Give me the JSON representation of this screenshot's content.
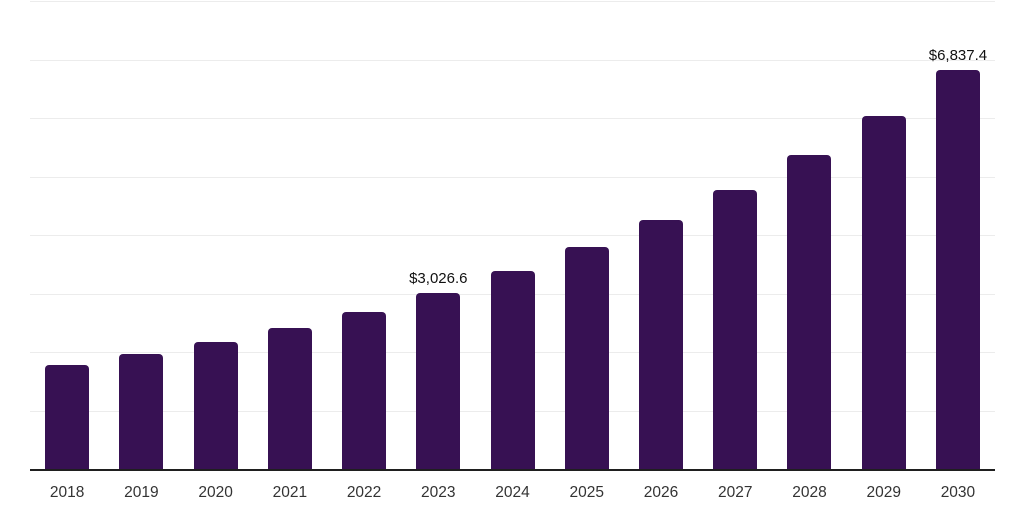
{
  "chart_data": {
    "type": "bar",
    "title": "",
    "xlabel": "",
    "ylabel": "",
    "categories": [
      "2018",
      "2019",
      "2020",
      "2021",
      "2022",
      "2023",
      "2024",
      "2025",
      "2026",
      "2027",
      "2028",
      "2029",
      "2030"
    ],
    "values": [
      1790,
      1975,
      2190,
      2430,
      2700,
      3026.6,
      3395,
      3805,
      4270,
      4785,
      5390,
      6060,
      6837.4
    ],
    "data_labels": [
      {
        "category": "2023",
        "text": "$3,026.6"
      },
      {
        "category": "2030",
        "text": "$6,837.4"
      }
    ],
    "ylim": [
      0,
      8000
    ],
    "gridline_interval": 1000,
    "grid": "horizontal",
    "legend": "none",
    "y_axis_tick_labels": "hidden",
    "colors": {
      "bar": "#371153",
      "gridline": "#ececec",
      "axis_line": "#1f1f1f",
      "tick_label": "#333333",
      "data_label": "#111111",
      "background": "#ffffff"
    }
  }
}
